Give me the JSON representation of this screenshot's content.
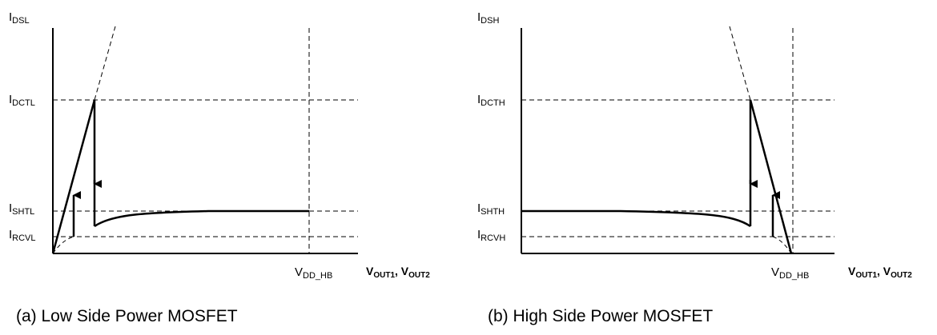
{
  "panel_a": {
    "y_axis": {
      "main": "I",
      "sub": "DSL"
    },
    "levels": [
      {
        "main": "I",
        "sub": "DCTL"
      },
      {
        "main": "I",
        "sub": "SHTL"
      },
      {
        "main": "I",
        "sub": "RCVL"
      }
    ],
    "vdd": {
      "main": "V",
      "sub": "DD_HB"
    },
    "x_axis": {
      "v1": "V",
      "s1": "OUT1",
      "sep": ", ",
      "v2": "V",
      "s2": "OUT2"
    },
    "caption": "(a) Low Side Power MOSFET"
  },
  "panel_b": {
    "y_axis": {
      "main": "I",
      "sub": "DSH"
    },
    "levels": [
      {
        "main": "I",
        "sub": "DCTH"
      },
      {
        "main": "I",
        "sub": "SHTH"
      },
      {
        "main": "I",
        "sub": "RCVH"
      }
    ],
    "vdd": {
      "main": "V",
      "sub": "DD_HB"
    },
    "x_axis": {
      "v1": "V",
      "s1": "OUT1",
      "sep": ", ",
      "v2": "V",
      "s2": "OUT2"
    },
    "caption": "(b) High Side Power MOSFET"
  },
  "colors": {
    "line": "#000000",
    "background": "#ffffff"
  }
}
